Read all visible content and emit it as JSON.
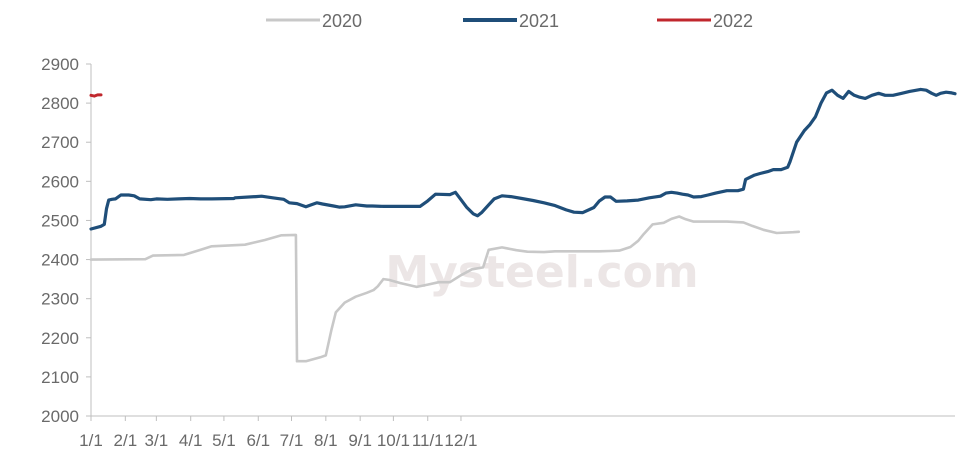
{
  "chart_data": {
    "type": "line",
    "title": "",
    "xlabel": "",
    "ylabel": "",
    "ylim": [
      2000,
      2900
    ],
    "y_ticks": [
      "2000",
      "2100",
      "2200",
      "2300",
      "2400",
      "2500",
      "2600",
      "2700",
      "2800",
      "2900"
    ],
    "x_ticks": [
      "1/1",
      "2/1",
      "3/1",
      "4/1",
      "5/1",
      "6/1",
      "7/1",
      "8/1",
      "9/1",
      "10/1",
      "11/1",
      "12/1"
    ],
    "x_unit": "day of year (1 = Jan 1)",
    "grid": false,
    "legend_position": "top",
    "watermark": "Mysteel.com",
    "series": [
      {
        "name": "2020",
        "color": "#c8c8c8",
        "points": [
          [
            1,
            2400
          ],
          [
            50,
            2401
          ],
          [
            57,
            2410
          ],
          [
            85,
            2412
          ],
          [
            100,
            2425
          ],
          [
            110,
            2434
          ],
          [
            140,
            2438
          ],
          [
            158,
            2450
          ],
          [
            173,
            2462
          ],
          [
            186,
            2463
          ],
          [
            187,
            2140
          ],
          [
            195,
            2140
          ],
          [
            208,
            2150
          ],
          [
            213,
            2155
          ],
          [
            218,
            2220
          ],
          [
            222,
            2265
          ],
          [
            230,
            2290
          ],
          [
            240,
            2305
          ],
          [
            250,
            2315
          ],
          [
            256,
            2322
          ],
          [
            260,
            2332
          ],
          [
            265,
            2350
          ],
          [
            270,
            2348
          ],
          [
            280,
            2340
          ],
          [
            295,
            2330
          ],
          [
            305,
            2336
          ],
          [
            315,
            2342
          ],
          [
            325,
            2342
          ],
          [
            335,
            2360
          ],
          [
            345,
            2375
          ],
          [
            355,
            2380
          ],
          [
            360,
            2425
          ],
          [
            372,
            2431
          ],
          [
            385,
            2424
          ],
          [
            395,
            2420
          ],
          [
            410,
            2419
          ],
          [
            420,
            2421
          ],
          [
            435,
            2421
          ],
          [
            450,
            2421
          ],
          [
            460,
            2421
          ],
          [
            470,
            2422
          ],
          [
            478,
            2423
          ],
          [
            488,
            2432
          ],
          [
            495,
            2448
          ],
          [
            500,
            2465
          ],
          [
            508,
            2490
          ],
          [
            518,
            2494
          ],
          [
            525,
            2504
          ],
          [
            532,
            2510
          ],
          [
            538,
            2503
          ],
          [
            545,
            2497
          ],
          [
            555,
            2497
          ],
          [
            575,
            2497
          ],
          [
            590,
            2495
          ],
          [
            598,
            2486
          ],
          [
            608,
            2476
          ],
          [
            620,
            2468
          ],
          [
            635,
            2470
          ],
          [
            640,
            2471
          ]
        ]
      },
      {
        "name": "2021",
        "color": "#1f4e79",
        "points": [
          [
            1,
            2478
          ],
          [
            10,
            2485
          ],
          [
            13,
            2490
          ],
          [
            15,
            2530
          ],
          [
            17,
            2552
          ],
          [
            20,
            2554
          ],
          [
            23,
            2555
          ],
          [
            28,
            2565
          ],
          [
            35,
            2565
          ],
          [
            40,
            2563
          ],
          [
            45,
            2555
          ],
          [
            55,
            2553
          ],
          [
            60,
            2555
          ],
          [
            70,
            2554
          ],
          [
            80,
            2555
          ],
          [
            90,
            2556
          ],
          [
            100,
            2555
          ],
          [
            110,
            2555
          ],
          [
            130,
            2556
          ],
          [
            131,
            2558
          ],
          [
            150,
            2561
          ],
          [
            155,
            2562
          ],
          [
            165,
            2558
          ],
          [
            175,
            2554
          ],
          [
            180,
            2545
          ],
          [
            187,
            2543
          ],
          [
            195,
            2535
          ],
          [
            200,
            2540
          ],
          [
            205,
            2545
          ],
          [
            210,
            2542
          ],
          [
            220,
            2537
          ],
          [
            225,
            2534
          ],
          [
            230,
            2535
          ],
          [
            240,
            2540
          ],
          [
            250,
            2537
          ],
          [
            255,
            2537
          ],
          [
            265,
            2536
          ],
          [
            280,
            2536
          ],
          [
            290,
            2536
          ],
          [
            298,
            2536
          ],
          [
            305,
            2550
          ],
          [
            312,
            2567
          ],
          [
            325,
            2566
          ],
          [
            330,
            2572
          ],
          [
            335,
            2553
          ],
          [
            340,
            2534
          ],
          [
            346,
            2517
          ],
          [
            350,
            2512
          ],
          [
            354,
            2521
          ],
          [
            360,
            2540
          ],
          [
            365,
            2555
          ],
          [
            372,
            2563
          ],
          [
            380,
            2561
          ],
          [
            390,
            2556
          ],
          [
            400,
            2551
          ],
          [
            410,
            2545
          ],
          [
            420,
            2538
          ],
          [
            430,
            2527
          ],
          [
            437,
            2521
          ],
          [
            445,
            2520
          ],
          [
            455,
            2533
          ],
          [
            460,
            2550
          ],
          [
            465,
            2560
          ],
          [
            470,
            2560
          ],
          [
            475,
            2549
          ],
          [
            485,
            2550
          ],
          [
            495,
            2552
          ],
          [
            505,
            2558
          ],
          [
            515,
            2562
          ],
          [
            520,
            2570
          ],
          [
            525,
            2572
          ],
          [
            530,
            2570
          ],
          [
            535,
            2567
          ],
          [
            540,
            2565
          ],
          [
            545,
            2560
          ],
          [
            552,
            2561
          ],
          [
            558,
            2565
          ],
          [
            565,
            2570
          ],
          [
            575,
            2576
          ],
          [
            585,
            2576
          ],
          [
            590,
            2580
          ],
          [
            592,
            2605
          ],
          [
            600,
            2616
          ],
          [
            605,
            2620
          ],
          [
            612,
            2625
          ],
          [
            617,
            2630
          ],
          [
            624,
            2630
          ],
          [
            630,
            2636
          ],
          [
            632,
            2650
          ],
          [
            638,
            2700
          ],
          [
            645,
            2730
          ],
          [
            650,
            2745
          ],
          [
            655,
            2765
          ],
          [
            660,
            2800
          ],
          [
            665,
            2826
          ],
          [
            670,
            2833
          ],
          [
            675,
            2820
          ],
          [
            680,
            2812
          ],
          [
            685,
            2830
          ],
          [
            690,
            2820
          ],
          [
            695,
            2815
          ],
          [
            700,
            2812
          ],
          [
            706,
            2820
          ],
          [
            712,
            2825
          ],
          [
            718,
            2820
          ],
          [
            725,
            2820
          ],
          [
            733,
            2825
          ],
          [
            740,
            2830
          ],
          [
            750,
            2835
          ],
          [
            755,
            2833
          ],
          [
            760,
            2825
          ],
          [
            764,
            2820
          ],
          [
            768,
            2825
          ],
          [
            773,
            2828
          ],
          [
            778,
            2826
          ],
          [
            781,
            2824
          ]
        ]
      },
      {
        "name": "2022",
        "color": "#c0272d",
        "points": [
          [
            1,
            2820
          ],
          [
            4,
            2818
          ],
          [
            7,
            2821
          ],
          [
            10,
            2821
          ]
        ]
      }
    ]
  }
}
